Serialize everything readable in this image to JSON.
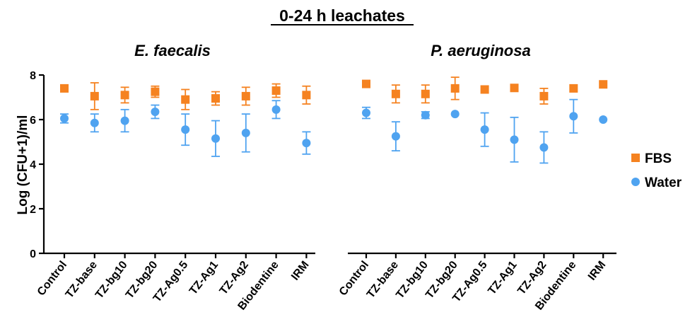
{
  "chart_data": {
    "type": "scatter",
    "title": "0-24 h leachates",
    "ylabel": "Log (CFU+1)/ml",
    "ylim": [
      0,
      8
    ],
    "yticks": [
      0,
      2,
      4,
      6,
      8
    ],
    "grid": false,
    "legend_position": "right",
    "categories": [
      "Control",
      "TZ-base",
      "TZ-bg10",
      "TZ-bg20",
      "TZ-Ag0.5",
      "TZ-Ag1",
      "TZ-Ag2",
      "Biodentine",
      "IRM"
    ],
    "series_styles": [
      {
        "name": "FBS",
        "color": "#f58220",
        "marker": "square"
      },
      {
        "name": "Water",
        "color": "#4fa3f0",
        "marker": "circle"
      }
    ],
    "panels": [
      {
        "title": "E. faecalis",
        "series": [
          {
            "name": "FBS",
            "values": [
              7.4,
              7.05,
              7.1,
              7.25,
              6.9,
              6.95,
              7.05,
              7.3,
              7.1
            ],
            "error": [
              0.15,
              0.6,
              0.35,
              0.25,
              0.45,
              0.3,
              0.4,
              0.3,
              0.4
            ]
          },
          {
            "name": "Water",
            "values": [
              6.05,
              5.85,
              5.95,
              6.35,
              5.55,
              5.15,
              5.4,
              6.45,
              4.95
            ],
            "error": [
              0.2,
              0.4,
              0.5,
              0.3,
              0.7,
              0.8,
              0.85,
              0.4,
              0.5
            ]
          }
        ]
      },
      {
        "title": "P. aeruginosa",
        "series": [
          {
            "name": "FBS",
            "values": [
              7.6,
              7.15,
              7.15,
              7.4,
              7.35,
              7.42,
              7.05,
              7.4,
              7.58
            ],
            "error": [
              0.1,
              0.4,
              0.4,
              0.5,
              0.0,
              0.0,
              0.35,
              0.0,
              0.0
            ]
          },
          {
            "name": "Water",
            "values": [
              6.3,
              5.25,
              6.2,
              6.25,
              5.55,
              5.1,
              4.75,
              6.15,
              6.0
            ],
            "error": [
              0.25,
              0.65,
              0.15,
              0.0,
              0.75,
              1.0,
              0.7,
              0.75,
              0.0
            ]
          }
        ]
      }
    ]
  }
}
